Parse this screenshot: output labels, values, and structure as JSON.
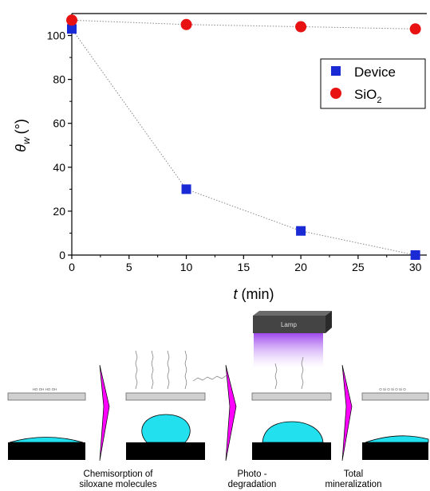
{
  "chart_data": {
    "type": "scatter",
    "x": [
      0,
      10,
      20,
      30
    ],
    "series": [
      {
        "name": "Device",
        "values": [
          103,
          30,
          11,
          0
        ],
        "color": "#1a2bd6",
        "marker": "square"
      },
      {
        "name": "SiO",
        "name_subscript": "2",
        "values": [
          107,
          105,
          104,
          103
        ],
        "color": "#e81212",
        "marker": "circle"
      }
    ],
    "xlim": [
      0,
      31
    ],
    "ylim": [
      0,
      110
    ],
    "xticks": [
      0,
      5,
      10,
      15,
      20,
      25,
      30
    ],
    "yticks": [
      0,
      20,
      40,
      60,
      80,
      100
    ],
    "xlabel": {
      "var": "t",
      "unit": "(min)"
    },
    "ylabel": {
      "var": "θ",
      "sub": "w",
      "unit": "(°)"
    },
    "connecting_lines": "dotted",
    "legend_position": "right"
  },
  "scheme": {
    "lamp_label": "Lamp",
    "captions": [
      [
        "Chemisorption of",
        "siloxane molecules"
      ],
      [
        "Photo -",
        "degradation"
      ],
      [
        "Total",
        "mineralization"
      ]
    ],
    "colors": {
      "drop": "#22e0ee",
      "arrow": "#ff00ff",
      "lamp": "#444444",
      "glow": "#a855f7"
    }
  }
}
